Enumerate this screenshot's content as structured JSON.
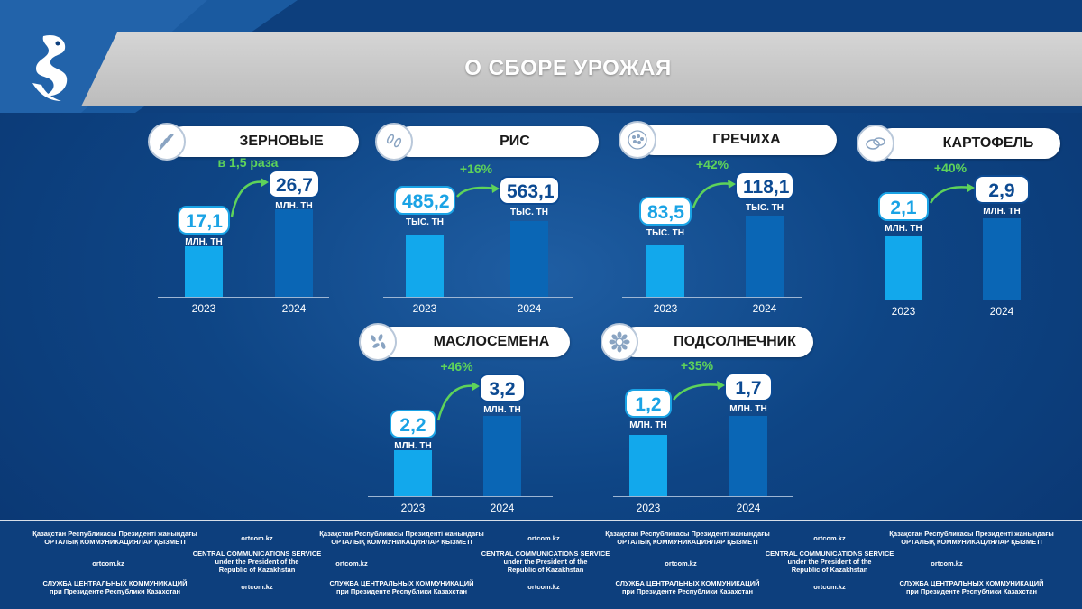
{
  "title": "О СБОРЕ УРОЖАЯ",
  "years": [
    "2023",
    "2024"
  ],
  "colors": {
    "bar_2023": "#12a8ec",
    "bar_2024": "#0a66b5",
    "growth": "#5ed35a"
  },
  "footer": {
    "kz": "Қазақстан Республикасы Президенті жанындағы\nОРТАЛЫҚ КОММУНИКАЦИЯЛАР ҚЫЗМЕТІ",
    "en": "CENTRAL COMMUNICATIONS SERVICE\nunder the President of the\nRepublic of Kazakhstan",
    "ru": "СЛУЖБА ЦЕНТРАЛЬНЫХ КОММУНИКАЦИЙ\nпри Президенте Республики Казахстан",
    "site": "ortcom.kz"
  },
  "chart_data": [
    {
      "type": "bar",
      "title": "ЗЕРНОВЫЕ",
      "icon": "wheat-icon",
      "categories": [
        "2023",
        "2024"
      ],
      "values": [
        17.1,
        26.7
      ],
      "labels": [
        "17,1",
        "26,7"
      ],
      "unit": "МЛН. ТН",
      "growth": "в 1,5 раза"
    },
    {
      "type": "bar",
      "title": "РИС",
      "icon": "rice-icon",
      "categories": [
        "2023",
        "2024"
      ],
      "values": [
        485.2,
        563.1
      ],
      "labels": [
        "485,2",
        "563,1"
      ],
      "unit": "ТЫС. ТН",
      "growth": "+16%"
    },
    {
      "type": "bar",
      "title": "ГРЕЧИХА",
      "icon": "buckwheat-icon",
      "categories": [
        "2023",
        "2024"
      ],
      "values": [
        83.5,
        118.1
      ],
      "labels": [
        "83,5",
        "118,1"
      ],
      "unit": "ТЫС. ТН",
      "growth": "+42%"
    },
    {
      "type": "bar",
      "title": "КАРТОФЕЛЬ",
      "icon": "potato-icon",
      "categories": [
        "2023",
        "2024"
      ],
      "values": [
        2.1,
        2.9
      ],
      "labels": [
        "2,1",
        "2,9"
      ],
      "unit": "МЛН. ТН",
      "growth": "+40%"
    },
    {
      "type": "bar",
      "title": "МАСЛОСЕМЕНА",
      "icon": "seeds-icon",
      "categories": [
        "2023",
        "2024"
      ],
      "values": [
        2.2,
        3.2
      ],
      "labels": [
        "2,2",
        "3,2"
      ],
      "unit": "МЛН. ТН",
      "growth": "+46%"
    },
    {
      "type": "bar",
      "title": "ПОДСОЛНЕЧНИК",
      "icon": "sunflower-icon",
      "categories": [
        "2023",
        "2024"
      ],
      "values": [
        1.2,
        1.7
      ],
      "labels": [
        "1,2",
        "1,7"
      ],
      "unit": "МЛН. ТН",
      "growth": "+35%"
    }
  ]
}
